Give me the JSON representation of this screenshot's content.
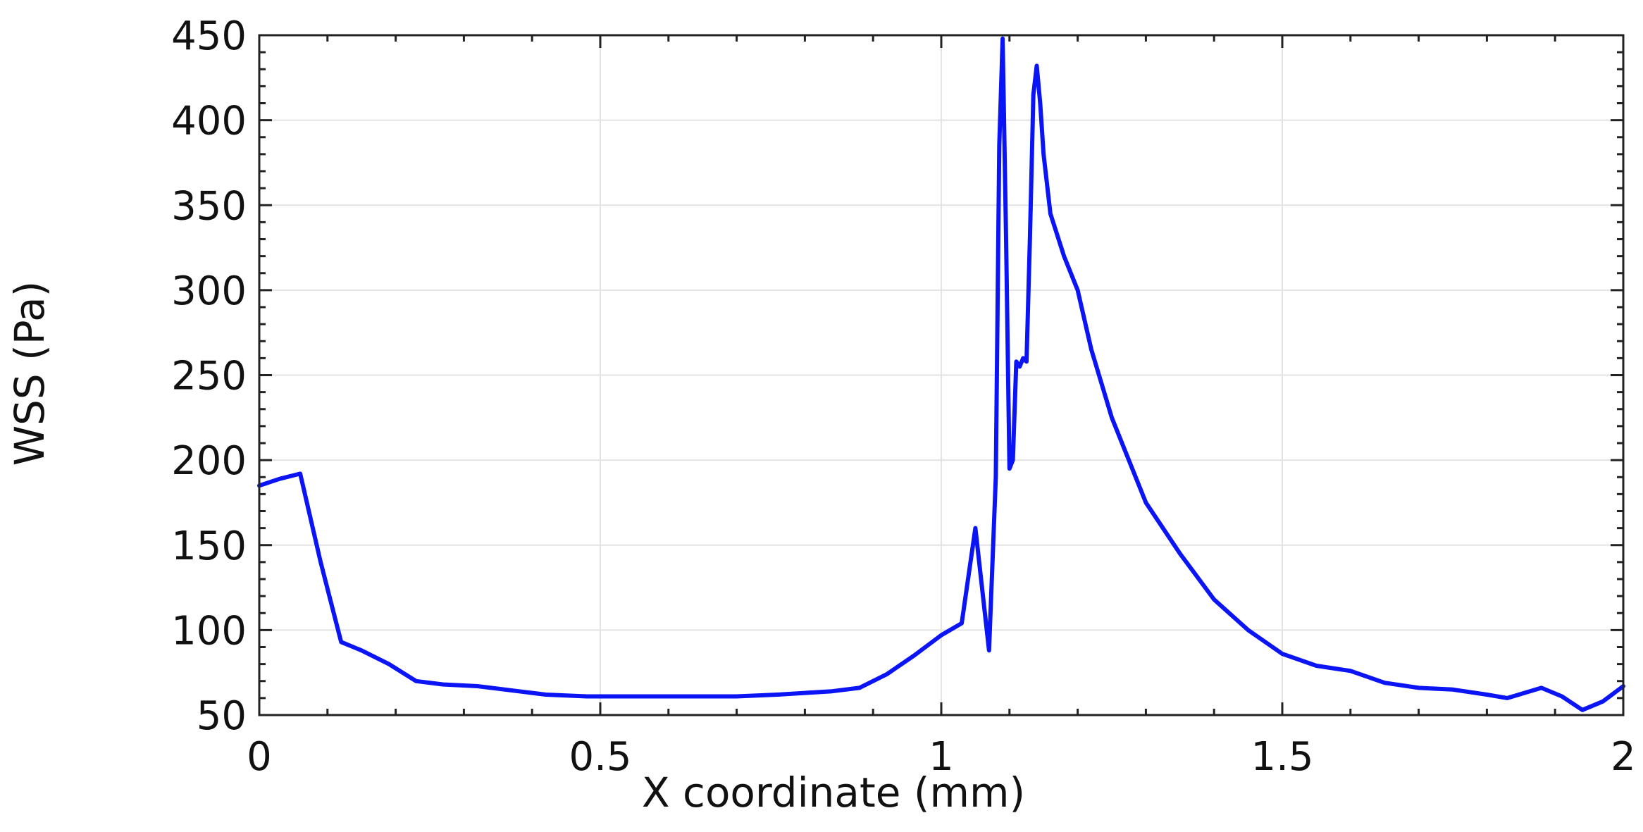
{
  "chart_data": {
    "type": "line",
    "title": "",
    "xlabel": "X coordinate (mm)",
    "ylabel": "WSS (Pa)",
    "xlim": [
      0,
      2
    ],
    "ylim": [
      50,
      450
    ],
    "x_ticks": [
      0,
      0.5,
      1,
      1.5,
      2
    ],
    "x_tick_labels": [
      "0",
      "0.5",
      "1",
      "1.5",
      "2"
    ],
    "y_ticks": [
      50,
      100,
      150,
      200,
      250,
      300,
      350,
      400,
      450
    ],
    "y_tick_labels": [
      "50",
      "100",
      "150",
      "200",
      "250",
      "300",
      "350",
      "400",
      "450"
    ],
    "grid": true,
    "legend": "none",
    "series": [
      {
        "color": "#0a14f5",
        "points": [
          [
            0.0,
            185
          ],
          [
            0.03,
            189
          ],
          [
            0.06,
            192
          ],
          [
            0.09,
            140
          ],
          [
            0.12,
            93
          ],
          [
            0.15,
            88
          ],
          [
            0.19,
            80
          ],
          [
            0.23,
            70
          ],
          [
            0.27,
            68
          ],
          [
            0.32,
            67
          ],
          [
            0.38,
            64
          ],
          [
            0.42,
            62
          ],
          [
            0.48,
            61
          ],
          [
            0.55,
            61
          ],
          [
            0.62,
            61
          ],
          [
            0.7,
            61
          ],
          [
            0.76,
            62
          ],
          [
            0.8,
            63
          ],
          [
            0.84,
            64
          ],
          [
            0.88,
            66
          ],
          [
            0.92,
            74
          ],
          [
            0.96,
            85
          ],
          [
            1.0,
            97
          ],
          [
            1.03,
            104
          ],
          [
            1.05,
            160
          ],
          [
            1.07,
            88
          ],
          [
            1.08,
            190
          ],
          [
            1.085,
            385
          ],
          [
            1.09,
            448
          ],
          [
            1.095,
            330
          ],
          [
            1.1,
            195
          ],
          [
            1.105,
            200
          ],
          [
            1.11,
            258
          ],
          [
            1.115,
            255
          ],
          [
            1.12,
            260
          ],
          [
            1.125,
            258
          ],
          [
            1.13,
            330
          ],
          [
            1.135,
            415
          ],
          [
            1.14,
            432
          ],
          [
            1.145,
            410
          ],
          [
            1.15,
            380
          ],
          [
            1.16,
            345
          ],
          [
            1.18,
            320
          ],
          [
            1.2,
            300
          ],
          [
            1.22,
            265
          ],
          [
            1.25,
            225
          ],
          [
            1.3,
            175
          ],
          [
            1.35,
            145
          ],
          [
            1.4,
            118
          ],
          [
            1.45,
            100
          ],
          [
            1.5,
            86
          ],
          [
            1.55,
            79
          ],
          [
            1.6,
            76
          ],
          [
            1.65,
            69
          ],
          [
            1.7,
            66
          ],
          [
            1.75,
            65
          ],
          [
            1.8,
            62
          ],
          [
            1.83,
            60
          ],
          [
            1.88,
            66
          ],
          [
            1.91,
            61
          ],
          [
            1.94,
            53
          ],
          [
            1.97,
            58
          ],
          [
            2.0,
            67
          ]
        ]
      }
    ]
  }
}
